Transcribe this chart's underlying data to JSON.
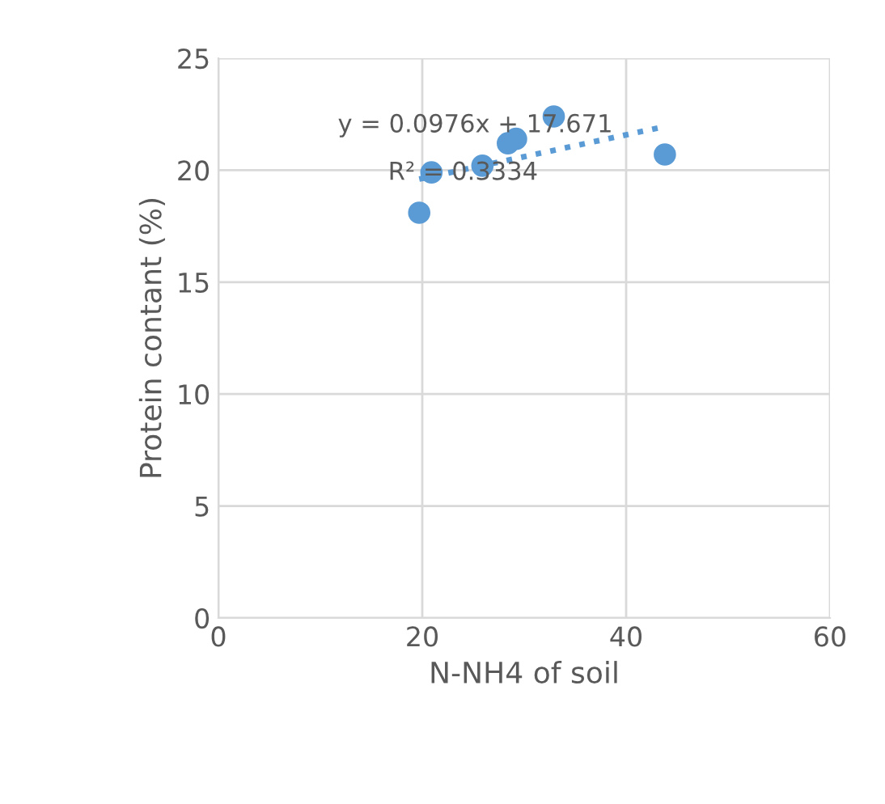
{
  "chart_data": {
    "type": "scatter",
    "xlabel": "N-NH4 of soil",
    "ylabel": "Protein contant (%)",
    "series": [
      {
        "color": "#5b9bd5",
        "marker": "circle",
        "x": [
          19.7,
          20.9,
          25.9,
          28.4,
          29.2,
          32.9,
          43.8
        ],
        "values": [
          18.1,
          19.9,
          20.2,
          21.2,
          21.4,
          22.4,
          20.7
        ]
      },
      {
        "type": "line",
        "color": "#5b9bd5",
        "x": [
          19.7,
          43.8
        ],
        "values": [
          19.6,
          21.95
        ],
        "line_style": "dotted",
        "marker": "none"
      }
    ],
    "annotations": [
      "y = 0.0976x + 17.671",
      "R² = 0.3334"
    ],
    "xlim": [
      0,
      60
    ],
    "xticks": [
      0,
      20,
      40,
      60
    ],
    "ylim": [
      0,
      25
    ],
    "yticks": [
      0,
      5,
      10,
      15,
      20,
      25
    ],
    "grid": true
  }
}
